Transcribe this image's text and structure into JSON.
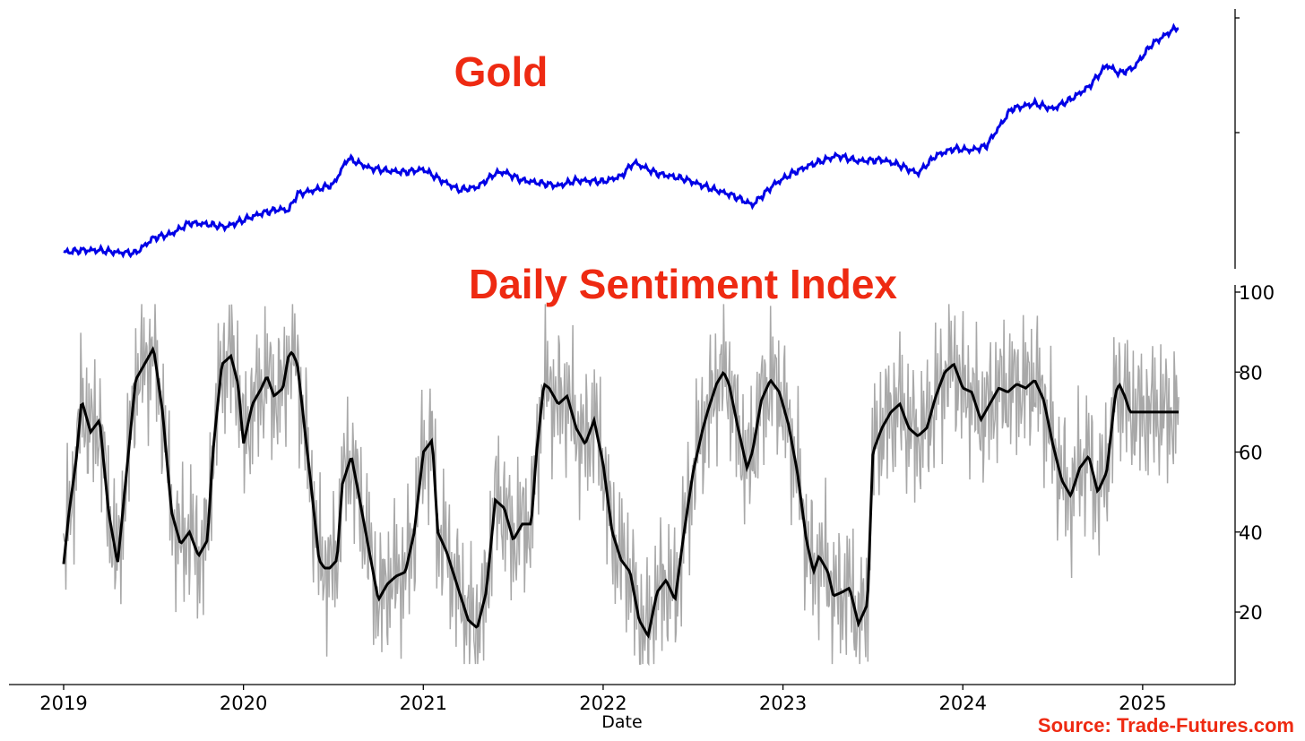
{
  "chart_data": [
    {
      "type": "line",
      "title": "Gold",
      "series": [],
      "x_range": [
        2019.0,
        2025.2
      ],
      "x": [
        2019.0,
        2019.1,
        2019.2,
        2019.3,
        2019.4,
        2019.5,
        2019.6,
        2019.7,
        2019.8,
        2019.9,
        2020.0,
        2020.1,
        2020.2,
        2020.25,
        2020.3,
        2020.4,
        2020.5,
        2020.58,
        2020.6,
        2020.7,
        2020.8,
        2020.9,
        2021.0,
        2021.1,
        2021.2,
        2021.3,
        2021.4,
        2021.45,
        2021.55,
        2021.65,
        2021.75,
        2021.85,
        2022.0,
        2022.1,
        2022.17,
        2022.3,
        2022.45,
        2022.6,
        2022.72,
        2022.83,
        2022.95,
        2023.05,
        2023.15,
        2023.3,
        2023.42,
        2023.55,
        2023.65,
        2023.75,
        2023.85,
        2023.95,
        2024.05,
        2024.13,
        2024.27,
        2024.4,
        2024.5,
        2024.6,
        2024.7,
        2024.8,
        2024.87,
        2024.95,
        2025.05,
        2025.15,
        2025.2
      ],
      "values": [
        1285,
        1300,
        1300,
        1285,
        1280,
        1390,
        1420,
        1500,
        1490,
        1470,
        1520,
        1570,
        1600,
        1590,
        1710,
        1740,
        1780,
        1970,
        1960,
        1900,
        1880,
        1870,
        1890,
        1810,
        1740,
        1760,
        1860,
        1870,
        1810,
        1790,
        1770,
        1810,
        1800,
        1840,
        1940,
        1860,
        1820,
        1750,
        1700,
        1630,
        1780,
        1860,
        1920,
        1990,
        1950,
        1960,
        1920,
        1860,
        1990,
        2040,
        2030,
        2060,
        2330,
        2370,
        2330,
        2400,
        2490,
        2650,
        2590,
        2630,
        2800,
        2890,
        2930
      ]
    },
    {
      "type": "line",
      "title": "Daily Sentiment Index",
      "series": [],
      "x_range": [
        2019.0,
        2025.2
      ],
      "y_range": [
        5,
        100
      ],
      "yticks": [
        20,
        40,
        60,
        80,
        100
      ],
      "x": [
        2019.0,
        2019.03,
        2019.07,
        2019.1,
        2019.15,
        2019.2,
        2019.25,
        2019.3,
        2019.35,
        2019.4,
        2019.45,
        2019.5,
        2019.55,
        2019.6,
        2019.65,
        2019.7,
        2019.75,
        2019.8,
        2019.83,
        2019.88,
        2019.93,
        2019.97,
        2020.0,
        2020.05,
        2020.1,
        2020.13,
        2020.17,
        2020.22,
        2020.25,
        2020.27,
        2020.3,
        2020.33,
        2020.38,
        2020.42,
        2020.45,
        2020.48,
        2020.52,
        2020.55,
        2020.6,
        2020.63,
        2020.7,
        2020.75,
        2020.8,
        2020.85,
        2020.9,
        2020.95,
        2021.0,
        2021.05,
        2021.08,
        2021.13,
        2021.2,
        2021.25,
        2021.3,
        2021.35,
        2021.4,
        2021.45,
        2021.5,
        2021.55,
        2021.6,
        2021.63,
        2021.67,
        2021.7,
        2021.75,
        2021.8,
        2021.85,
        2021.9,
        2021.95,
        2022.0,
        2022.05,
        2022.1,
        2022.15,
        2022.2,
        2022.25,
        2022.3,
        2022.35,
        2022.4,
        2022.45,
        2022.5,
        2022.55,
        2022.58,
        2022.63,
        2022.67,
        2022.7,
        2022.75,
        2022.8,
        2022.83,
        2022.88,
        2022.93,
        2022.98,
        2023.03,
        2023.08,
        2023.13,
        2023.17,
        2023.2,
        2023.25,
        2023.28,
        2023.33,
        2023.37,
        2023.42,
        2023.47,
        2023.5,
        2023.55,
        2023.6,
        2023.65,
        2023.7,
        2023.75,
        2023.8,
        2023.85,
        2023.9,
        2023.95,
        2024.0,
        2024.05,
        2024.1,
        2024.15,
        2024.2,
        2024.25,
        2024.3,
        2024.35,
        2024.4,
        2024.45,
        2024.5,
        2024.55,
        2024.6,
        2024.65,
        2024.7,
        2024.75,
        2024.8,
        2024.85,
        2024.87,
        2024.9,
        2024.93,
        2024.97,
        2025.0,
        2025.03,
        2025.07,
        2025.1,
        2025.13,
        2025.17,
        2025.2
      ],
      "values": [
        32,
        45,
        58,
        73,
        65,
        68,
        45,
        32,
        55,
        78,
        82,
        86,
        70,
        45,
        37,
        40,
        34,
        38,
        60,
        82,
        84,
        77,
        62,
        72,
        76,
        79,
        74,
        76,
        84,
        85,
        82,
        70,
        50,
        33,
        31,
        31,
        33,
        52,
        59,
        52,
        35,
        23,
        27,
        29,
        30,
        40,
        60,
        63,
        40,
        35,
        25,
        18,
        16,
        25,
        48,
        46,
        38,
        42,
        42,
        60,
        77,
        76,
        72,
        74,
        66,
        62,
        68,
        57,
        40,
        33,
        30,
        18,
        14,
        25,
        28,
        23,
        40,
        55,
        65,
        70,
        77,
        80,
        77,
        66,
        56,
        60,
        73,
        78,
        75,
        67,
        55,
        38,
        30,
        34,
        30,
        24,
        25,
        26,
        17,
        22,
        60,
        66,
        70,
        72,
        66,
        64,
        66,
        74,
        80,
        82,
        76,
        75,
        68,
        72,
        76,
        75,
        77,
        76,
        78,
        73,
        62,
        53,
        49,
        56,
        59,
        50,
        55,
        75,
        77,
        74,
        70,
        70,
        70,
        70,
        70,
        70,
        70,
        70,
        70
      ]
    }
  ],
  "x_axis": {
    "label": "Date",
    "ticks": [
      "2019",
      "2020",
      "2021",
      "2022",
      "2023",
      "2024",
      "2025"
    ]
  },
  "source": "Source: Trade-Futures.com",
  "colors": {
    "gold_line": "#0000e6",
    "dsi_raw": "#a8a8a8",
    "dsi_smooth": "#000000",
    "title": "#ee2a12"
  }
}
